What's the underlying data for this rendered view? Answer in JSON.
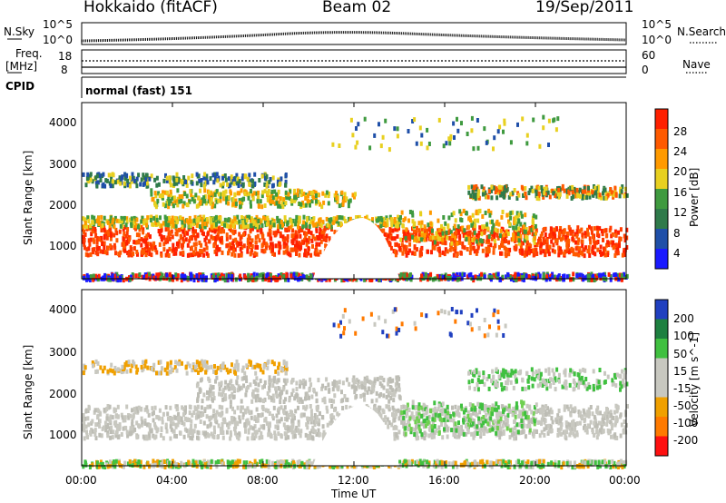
{
  "header": {
    "station": "Hokkaido (fitACF)",
    "beam": "Beam 02",
    "date": "19/Sep/2011"
  },
  "top_panels": {
    "nsky_label": "N.Sky",
    "nsearch_label": "N.Search",
    "noise_ticks": [
      "10^5",
      "10^0"
    ],
    "noise_ticks_right": [
      "10^5",
      "10^0"
    ],
    "freq_label_1": "Freq.",
    "freq_label_2": "[MHz]",
    "freq_ticks": [
      "8",
      "18"
    ],
    "nave_label": "Nave",
    "nave_ticks": [
      "60",
      "0"
    ],
    "cpid_label": "CPID",
    "cpid_text": "normal (fast) 151"
  },
  "colors": {
    "power_scale": [
      "#1a1aff",
      "#1f4fa8",
      "#2f7a4a",
      "#3f9a3f",
      "#e8d020",
      "#ff9a00",
      "#ff5a00",
      "#ff2000"
    ],
    "velocity_scale": [
      "#ff1010",
      "#ff7a00",
      "#f0a000",
      "#c8c8c0",
      "#c8c8c0",
      "#40c040",
      "#1e8040",
      "#2040c0"
    ]
  },
  "chart_data": [
    {
      "type": "heatmap",
      "title": "",
      "xlabel": "Time UT",
      "ylabel": "Slant Range [km]",
      "x_ticks": [
        "00:00",
        "04:00",
        "08:00",
        "12:00",
        "16:00",
        "20:00",
        "00:00"
      ],
      "xlim": [
        0,
        24
      ],
      "y_ticks": [
        "1000",
        "2000",
        "3000",
        "4000"
      ],
      "ylim": [
        180,
        4500
      ],
      "colorbar_label": "Power [dB]",
      "colorbar_ticks": [
        "28",
        "24",
        "20",
        "16",
        "12",
        "8",
        "4"
      ],
      "clim": [
        0,
        32
      ]
    },
    {
      "type": "heatmap",
      "title": "",
      "xlabel": "Time UT",
      "ylabel": "Slant Range [km]",
      "x_ticks": [
        "00:00",
        "04:00",
        "08:00",
        "12:00",
        "16:00",
        "20:00",
        "00:00"
      ],
      "xlim": [
        0,
        24
      ],
      "y_ticks": [
        "1000",
        "2000",
        "3000",
        "4000"
      ],
      "ylim": [
        180,
        4500
      ],
      "colorbar_label": "Velocity [m s^-1]",
      "colorbar_ticks": [
        "200",
        "100",
        "50",
        "15",
        "-15",
        "-50",
        "-100",
        "-200"
      ],
      "clim": [
        -250,
        250
      ]
    }
  ],
  "x_axis_title": "Time UT"
}
